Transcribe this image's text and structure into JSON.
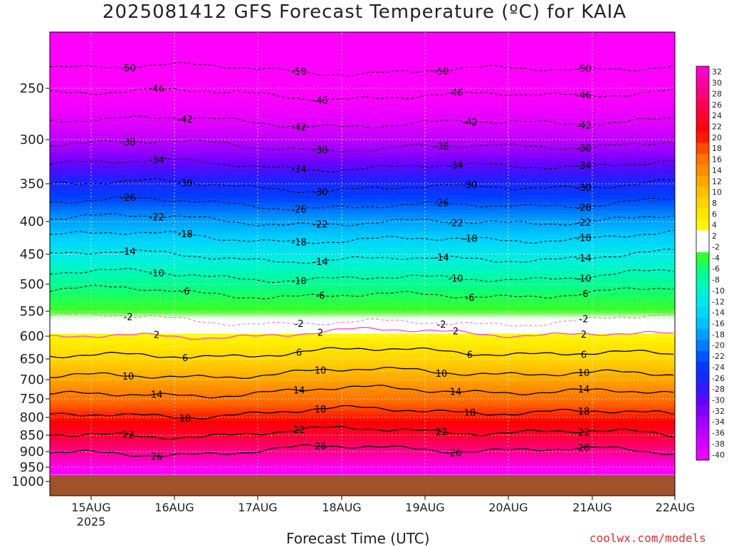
{
  "chart_data": {
    "type": "heatmap",
    "title": "2025081412 GFS Forecast Temperature (ºC) for KAIA",
    "xlabel": "Forecast Time (UTC)",
    "ylabel": "",
    "x_ticks": [
      "15AUG",
      "16AUG",
      "17AUG",
      "18AUG",
      "19AUG",
      "20AUG",
      "21AUG",
      "22AUG"
    ],
    "x_year_label": "2025",
    "y_ticks": [
      250,
      300,
      350,
      400,
      450,
      500,
      550,
      600,
      650,
      700,
      750,
      800,
      850,
      900,
      950,
      1000
    ],
    "y_range": [
      200,
      1000
    ],
    "colorbar_ticks": [
      32,
      30,
      28,
      26,
      24,
      22,
      20,
      18,
      16,
      14,
      12,
      10,
      8,
      6,
      4,
      2,
      -2,
      -4,
      -6,
      -8,
      -10,
      -12,
      -14,
      -16,
      -18,
      -20,
      -22,
      -24,
      -26,
      -28,
      -30,
      -32,
      -34,
      -36,
      -38,
      -40
    ],
    "contour_levels": [
      {
        "level": -50,
        "label": "-50"
      },
      {
        "level": -46,
        "label": "-46"
      },
      {
        "level": -42,
        "label": "-42"
      },
      {
        "level": -38,
        "label": "-38"
      },
      {
        "level": -34,
        "label": "-34"
      },
      {
        "level": -30,
        "label": "-30"
      },
      {
        "level": -26,
        "label": "-26"
      },
      {
        "level": -22,
        "label": "-22"
      },
      {
        "level": -18,
        "label": "-18"
      },
      {
        "level": -14,
        "label": "-14"
      },
      {
        "level": -10,
        "label": "-10"
      },
      {
        "level": -6,
        "label": "-6"
      },
      {
        "level": -2,
        "label": "-2"
      },
      {
        "level": 2,
        "label": "2"
      },
      {
        "level": 6,
        "label": "6"
      },
      {
        "level": 10,
        "label": "10"
      },
      {
        "level": 14,
        "label": "14"
      },
      {
        "level": 18,
        "label": "18"
      },
      {
        "level": 22,
        "label": "22"
      },
      {
        "level": 26,
        "label": "26"
      }
    ],
    "grid": true
  },
  "credit": "coolwx.com/models"
}
